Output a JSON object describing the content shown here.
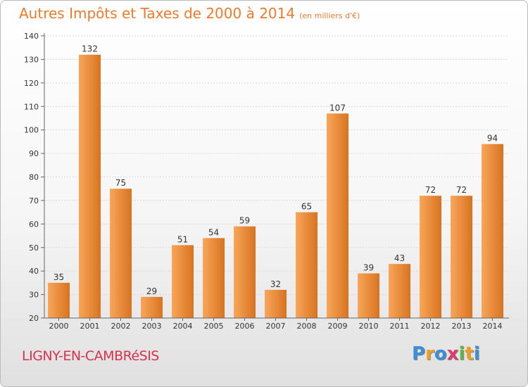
{
  "chart_data": {
    "type": "bar",
    "title": "Autres Impôts et Taxes de 2000 à 2014",
    "subtitle": "(en milliers d'€)",
    "categories": [
      "2000",
      "2001",
      "2002",
      "2003",
      "2004",
      "2005",
      "2006",
      "2007",
      "2008",
      "2009",
      "2010",
      "2011",
      "2012",
      "2013",
      "2014"
    ],
    "values": [
      35,
      132,
      75,
      29,
      51,
      54,
      59,
      32,
      65,
      107,
      39,
      43,
      72,
      72,
      94
    ],
    "ylim": [
      20,
      140
    ],
    "yticks": [
      20,
      30,
      40,
      50,
      60,
      70,
      80,
      90,
      100,
      110,
      120,
      130,
      140
    ],
    "xlabel": "",
    "ylabel": "",
    "bar_color_light": "#f8a65a",
    "bar_color_dark": "#d8731f"
  },
  "footer": {
    "city": "LIGNY-EN-CAMBRéSIS",
    "logo_letters": [
      "P",
      "r",
      "o",
      "x",
      "i",
      "t",
      "i"
    ],
    "logo_colors": [
      "#3a8fd6",
      "#f0a020",
      "#3a8fd6",
      "#e03a6a",
      "#5ab84a",
      "#f0a020",
      "#3a8fd6"
    ]
  }
}
